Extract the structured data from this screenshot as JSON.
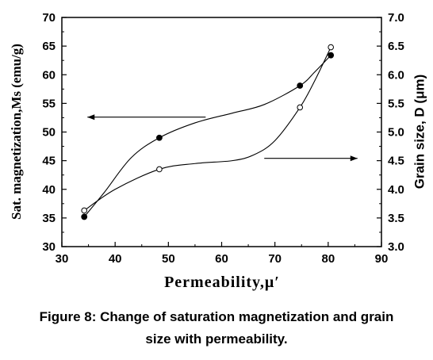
{
  "chart_data": {
    "type": "line",
    "xlabel": "Permeability,μ′",
    "ylabel": "Sat. magnetization,Ms (emu/g)",
    "y2label": "Grain size, D (μm)",
    "xlim": [
      30,
      90
    ],
    "ylim": [
      30,
      70
    ],
    "y2lim": [
      3.0,
      7.0
    ],
    "xticks": [
      "30",
      "40",
      "50",
      "60",
      "70",
      "80",
      "90"
    ],
    "yticks": [
      "30",
      "35",
      "40",
      "45",
      "50",
      "55",
      "60",
      "65",
      "70"
    ],
    "y2ticks": [
      "3.0",
      "3.5",
      "4.0",
      "4.5",
      "5.0",
      "5.5",
      "6.0",
      "6.5",
      "7.0"
    ],
    "grid": false,
    "series": [
      {
        "axis": "left",
        "marker": "filled-circle",
        "points": [
          [
            34.2,
            35.2
          ],
          [
            48.3,
            49.0
          ],
          [
            74.7,
            58.1
          ],
          [
            80.5,
            63.4
          ]
        ],
        "curve": [
          [
            34.2,
            35.2
          ],
          [
            38,
            39.5
          ],
          [
            43,
            45.5
          ],
          [
            48.3,
            49.0
          ],
          [
            55,
            51.6
          ],
          [
            62,
            53.3
          ],
          [
            68,
            54.8
          ],
          [
            74.7,
            58.1
          ],
          [
            77.5,
            60.5
          ],
          [
            80.5,
            63.4
          ]
        ]
      },
      {
        "axis": "right",
        "marker": "open-circle",
        "points": [
          [
            34.2,
            3.63
          ],
          [
            48.3,
            4.35
          ],
          [
            74.7,
            5.43
          ],
          [
            80.5,
            6.48
          ]
        ],
        "curve": [
          [
            34.2,
            3.63
          ],
          [
            40,
            4.0
          ],
          [
            48.3,
            4.35
          ],
          [
            55,
            4.45
          ],
          [
            62,
            4.5
          ],
          [
            66,
            4.6
          ],
          [
            70,
            4.85
          ],
          [
            74.7,
            5.43
          ],
          [
            77.5,
            5.9
          ],
          [
            80.5,
            6.48
          ]
        ]
      }
    ],
    "arrows": [
      {
        "direction": "left",
        "from": [
          57,
          52.6
        ],
        "to": [
          34.8,
          52.6
        ]
      },
      {
        "direction": "right",
        "from": [
          68,
          45.4
        ],
        "to": [
          85.5,
          45.4
        ]
      }
    ]
  },
  "caption": {
    "line1": "Figure 8: Change of saturation magnetization and grain",
    "line2": "size with permeability."
  }
}
